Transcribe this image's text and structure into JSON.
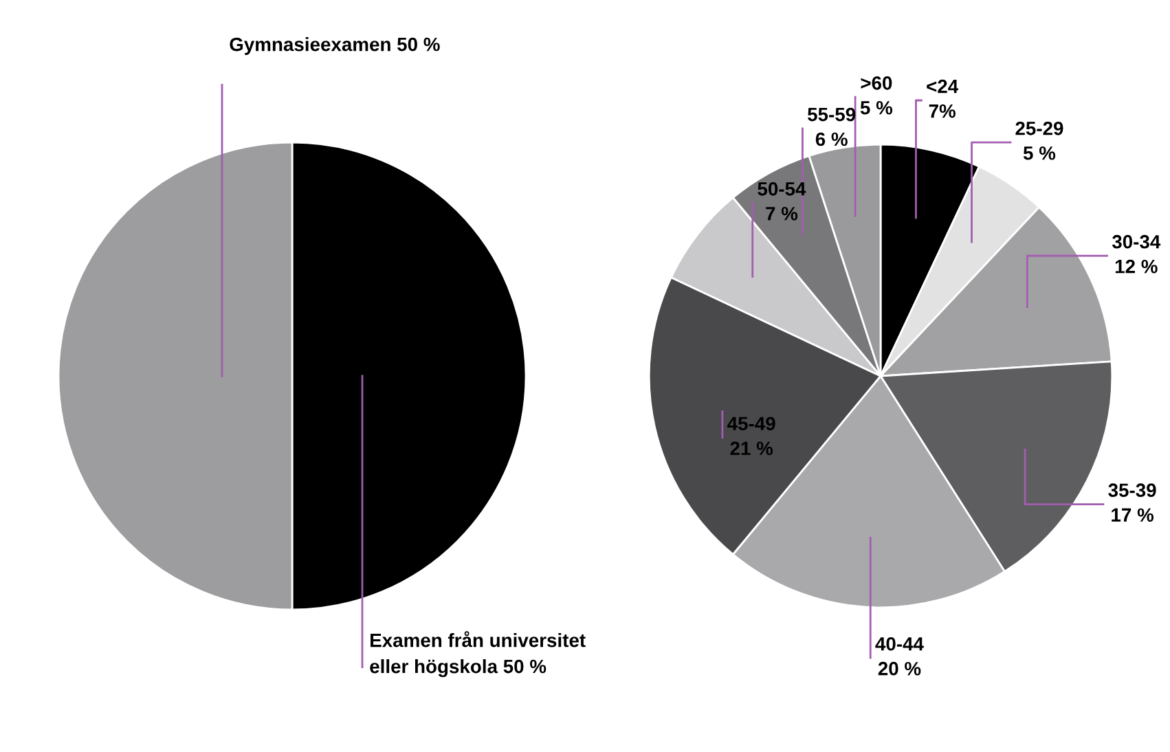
{
  "chart_data": [
    {
      "type": "pie",
      "categories": [
        "Examen från universitet\neller högskola",
        "Gymnasieexamen"
      ],
      "values": [
        50,
        50
      ],
      "value_labels": [
        "50 %",
        "50 %"
      ],
      "colors": [
        "#000000",
        "#9d9d9f"
      ]
    },
    {
      "type": "pie",
      "categories": [
        "<24",
        "25-29",
        "30-34",
        "35-39",
        "40-44",
        "45-49",
        "50-54",
        "55-59",
        ">60"
      ],
      "values": [
        7,
        5,
        12,
        17,
        20,
        21,
        7,
        6,
        5
      ],
      "value_labels": [
        "7%",
        "5 %",
        "12 %",
        "17 %",
        "20 %",
        "21 %",
        "7 %",
        "6 %",
        "5 %"
      ],
      "colors": [
        "#000000",
        "#e2e2e3",
        "#a1a1a3",
        "#5e5e60",
        "#a9a9ab",
        "#49494b",
        "#c9c9cb",
        "#78787a",
        "#9a9a9c"
      ]
    }
  ]
}
